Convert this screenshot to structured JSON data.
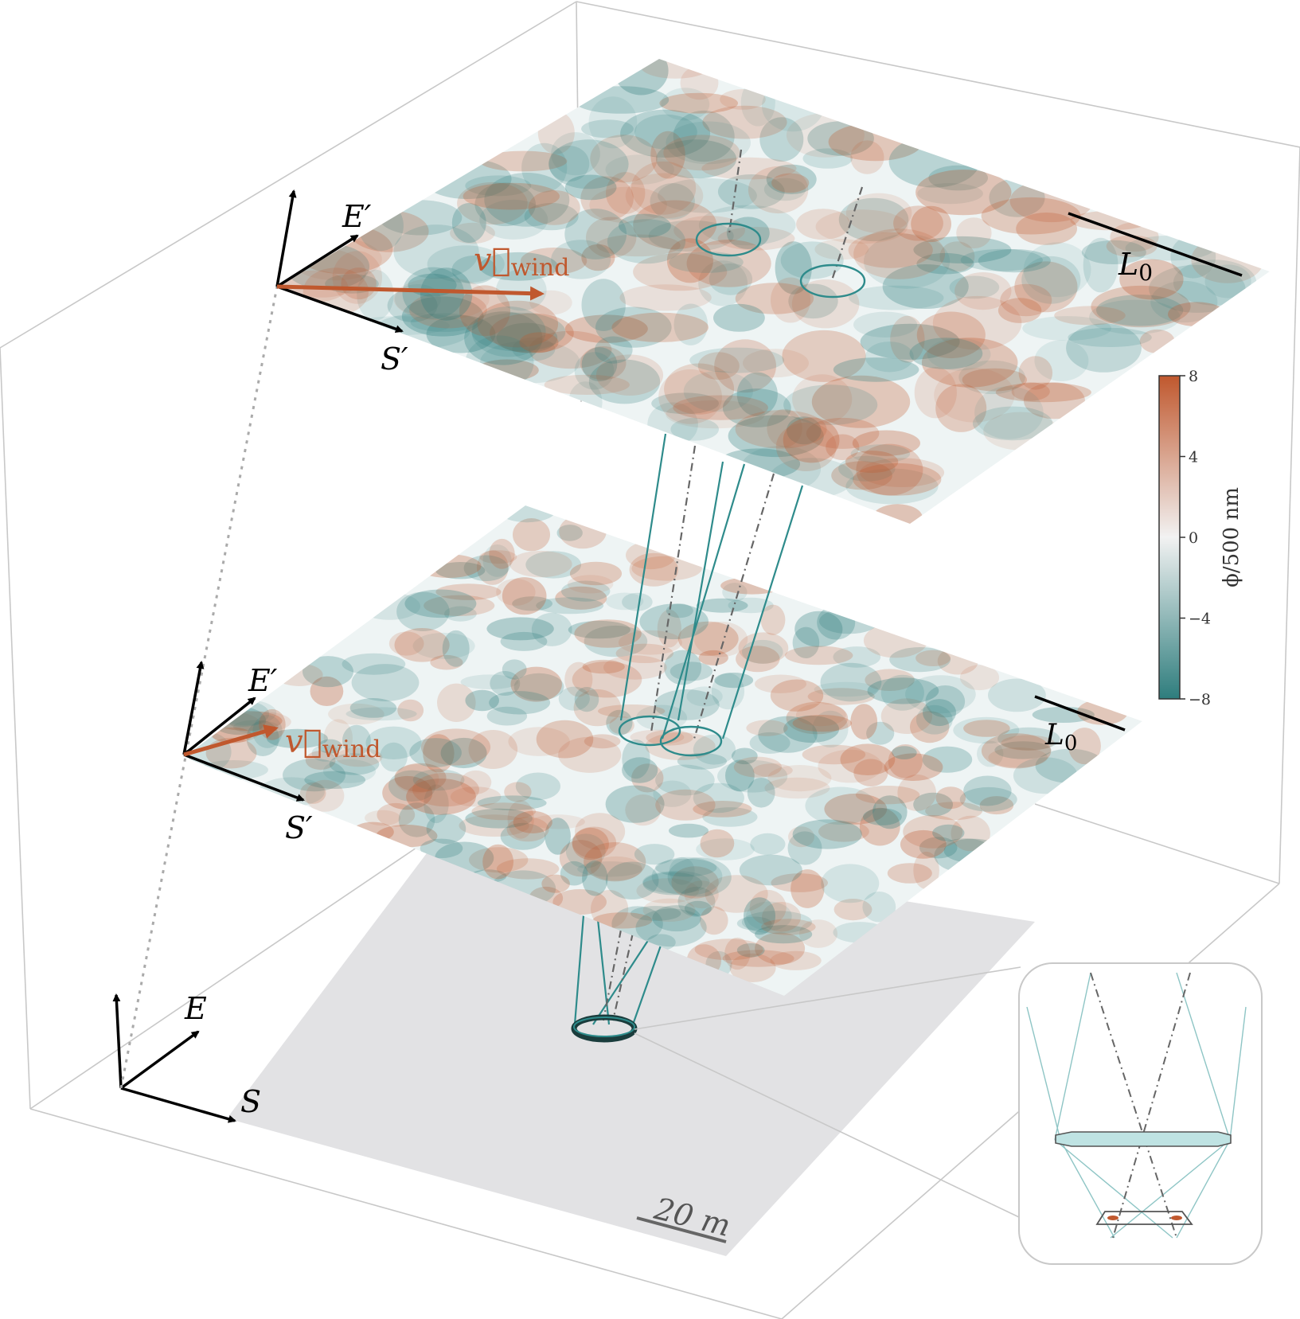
{
  "layers": [
    {
      "name": "upper",
      "axis_labels": {
        "vertical": "",
        "east": "E′",
        "south": "S′"
      },
      "wind_label": "v⃗",
      "wind_subscript": "wind",
      "outer_scale_label": "L",
      "outer_scale_subscript": "0"
    },
    {
      "name": "lower",
      "axis_labels": {
        "vertical": "",
        "east": "E′",
        "south": "S′"
      },
      "wind_label": "v⃗",
      "wind_subscript": "wind",
      "outer_scale_label": "L",
      "outer_scale_subscript": "0"
    }
  ],
  "ground": {
    "axis_labels": {
      "east": "E",
      "south": "S"
    },
    "scale_bar_label": "20 m"
  },
  "colorbar": {
    "title": "ϕ/500 nm",
    "ticks": [
      "8",
      "4",
      "0",
      "−4",
      "−8"
    ],
    "min": -8,
    "max": 8,
    "color_low": "#2e7d7d",
    "color_mid": "#f2f2f2",
    "color_high": "#c0582e"
  },
  "colors": {
    "wind_arrow": "#c0582e",
    "beam": "#2e8b8b",
    "box_edges": "#c8c8c8",
    "ground": "#e2e2e4"
  }
}
